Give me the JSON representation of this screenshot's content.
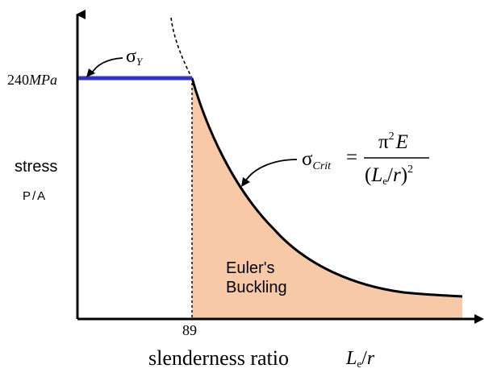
{
  "chart_data": {
    "type": "line",
    "title": "",
    "xlabel": "slenderness ratio",
    "xlabel_symbol": "Le/r",
    "ylabel": "stress",
    "ylabel_sub": "P/A",
    "yield_tick_label": "240MPa",
    "transition_tick_label": "89",
    "yield_stress_mpa": 240,
    "transition_slenderness": 89,
    "series": [
      {
        "name": "σY",
        "segment": "horizontal yield line",
        "color": "#3333cc"
      },
      {
        "name": "σCrit = π²E / (Le/r)²",
        "segment": "Euler hyperbola",
        "color": "#000000"
      }
    ],
    "region_label": "Euler's\nBuckling",
    "region_fill": "#f8c9a6",
    "grid": false
  },
  "labels": {
    "yield_value": "240",
    "yield_unit": "MPa",
    "sigma_y_symbol": "σ",
    "sigma_y_sub": "Y",
    "sigma_crit_symbol": "σ",
    "sigma_crit_sub": "Crit",
    "equals": "=",
    "numerator_pi": "π",
    "numerator_sup": "2",
    "numerator_E": "E",
    "denominator_open": "(",
    "denominator_L": "L",
    "denominator_e": "e",
    "denominator_slash": "/",
    "denominator_r": "r",
    "denominator_close": ")",
    "denominator_sup": "2",
    "stress": "stress",
    "p_over_a": "P/A",
    "tick_89": "89",
    "slenderness": "slenderness ratio",
    "x_symbol_L": "L",
    "x_symbol_e": "e",
    "x_symbol_slash": "/",
    "x_symbol_r": "r",
    "region_line1": "Euler's",
    "region_line2": "Buckling"
  }
}
